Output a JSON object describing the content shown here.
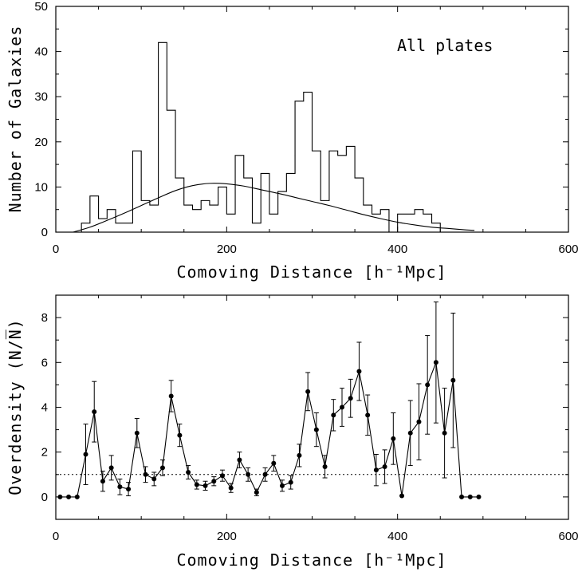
{
  "chart_data": [
    {
      "type": "histogram",
      "annotation": "All plates",
      "xlabel": "Comoving Distance [h⁻¹Mpc]",
      "ylabel": "Number of Galaxies",
      "xlim": [
        0,
        600
      ],
      "ylim": [
        0,
        50
      ],
      "xticks": [
        0,
        200,
        400,
        600
      ],
      "yticks": [
        0,
        10,
        20,
        30,
        40,
        50
      ],
      "bin_width": 10,
      "bins_start": [
        30,
        40,
        50,
        60,
        70,
        80,
        90,
        100,
        110,
        120,
        130,
        140,
        150,
        160,
        170,
        180,
        190,
        200,
        210,
        220,
        230,
        240,
        250,
        260,
        270,
        280,
        290,
        300,
        310,
        320,
        330,
        340,
        350,
        360,
        370,
        380,
        390,
        400,
        410,
        420,
        430,
        440,
        450,
        460
      ],
      "counts": [
        2,
        8,
        3,
        5,
        2,
        2,
        18,
        7,
        6,
        42,
        27,
        12,
        6,
        5,
        7,
        6,
        10,
        4,
        17,
        12,
        2,
        13,
        4,
        9,
        13,
        29,
        31,
        18,
        7,
        18,
        17,
        19,
        12,
        6,
        4,
        5,
        0,
        4,
        4,
        5,
        4,
        2,
        0,
        0
      ],
      "series": [
        {
          "name": "",
          "type": "line",
          "x": [
            20,
            40,
            60,
            80,
            100,
            120,
            140,
            160,
            180,
            200,
            220,
            240,
            260,
            280,
            300,
            320,
            340,
            360,
            380,
            400,
            420,
            440,
            460,
            480,
            490
          ],
          "values": [
            0,
            1.1,
            2.6,
            4.2,
            5.9,
            7.6,
            9.2,
            10.3,
            10.8,
            10.7,
            10.2,
            9.4,
            8.6,
            7.7,
            6.8,
            5.9,
            4.9,
            3.9,
            3.0,
            2.2,
            1.6,
            1.1,
            0.8,
            0.5,
            0.4
          ]
        }
      ]
    },
    {
      "type": "line",
      "xlabel": "Comoving Distance [h⁻¹Mpc]",
      "ylabel": "Overdensity (N/N̅)",
      "xlim": [
        0,
        600
      ],
      "ylim": [
        -1,
        9
      ],
      "xticks": [
        0,
        200,
        400,
        600
      ],
      "yticks": [
        0,
        2,
        4,
        6,
        8
      ],
      "reference_line": 1,
      "series": [
        {
          "name": "",
          "x": [
            5,
            15,
            25,
            35,
            45,
            55,
            65,
            75,
            85,
            95,
            105,
            115,
            125,
            135,
            145,
            155,
            165,
            175,
            185,
            195,
            205,
            215,
            225,
            235,
            245,
            255,
            265,
            275,
            285,
            295,
            305,
            315,
            325,
            335,
            345,
            355,
            365,
            375,
            385,
            395,
            405,
            415,
            425,
            435,
            445,
            455,
            465,
            475,
            485,
            495
          ],
          "values": [
            0,
            0,
            0,
            1.9,
            3.8,
            0.7,
            1.3,
            0.45,
            0.35,
            2.85,
            1.0,
            0.8,
            1.3,
            4.5,
            2.75,
            1.1,
            0.55,
            0.5,
            0.7,
            0.95,
            0.4,
            1.65,
            1.0,
            0.2,
            1.0,
            1.5,
            0.5,
            0.65,
            1.85,
            4.7,
            3.0,
            1.35,
            3.65,
            4.0,
            4.4,
            5.6,
            3.65,
            1.2,
            1.35,
            2.6,
            0.05,
            2.85,
            3.35,
            5.0,
            6.0,
            2.85,
            5.2,
            0,
            0,
            0
          ],
          "errors": [
            0,
            0,
            0,
            1.35,
            1.35,
            0.45,
            0.55,
            0.35,
            0.3,
            0.65,
            0.35,
            0.3,
            0.35,
            0.7,
            0.5,
            0.3,
            0.2,
            0.2,
            0.2,
            0.25,
            0.2,
            0.35,
            0.3,
            0.15,
            0.3,
            0.35,
            0.25,
            0.3,
            0.5,
            0.85,
            0.75,
            0.5,
            0.7,
            0.85,
            0.85,
            1.3,
            0.9,
            0.7,
            0.75,
            1.15,
            0,
            1.45,
            1.7,
            2.2,
            2.7,
            2.0,
            3.0,
            0,
            0,
            0
          ]
        }
      ]
    }
  ]
}
